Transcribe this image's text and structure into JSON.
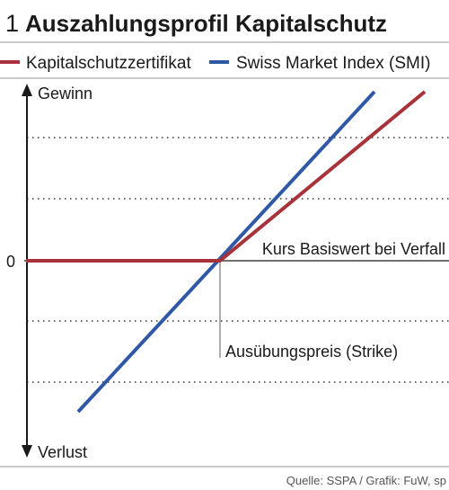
{
  "header": {
    "number": "1",
    "title": "Auszahlungsprofil Kapitalschutz"
  },
  "colors": {
    "text": "#1a1a1a",
    "grid": "#333333",
    "kapitalschutz": "#a8323a",
    "smi": "#2f58a6"
  },
  "chart_data": {
    "type": "line",
    "title": "Auszahlungsprofil Kapitalschutz",
    "xlabel": "Kurs Basiswert bei Verfall",
    "y_axis_top_label": "Gewinn",
    "y_axis_bottom_label": "Verlust",
    "zero_label": "0",
    "strike_label": "Ausübungspreis (Strike)",
    "grid": "horizontal dotted",
    "legend_position": "top",
    "strike_x": 0,
    "series": [
      {
        "name": "Kapitalschutzzertifikat",
        "color": "#a8323a",
        "points": [
          [
            -216,
            0
          ],
          [
            0,
            0
          ],
          [
            228,
            188
          ]
        ]
      },
      {
        "name": "Swiss Market Index (SMI)",
        "color": "#2f58a6",
        "points": [
          [
            -158,
            -168
          ],
          [
            172,
            188
          ]
        ]
      }
    ]
  },
  "footer": {
    "source": "Quelle: SSPA / Grafik: FuW, sp"
  }
}
